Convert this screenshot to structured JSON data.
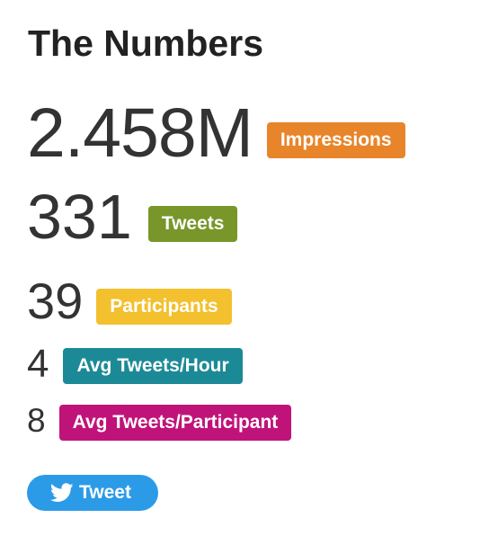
{
  "title": "The Numbers",
  "stats": [
    {
      "value": "2.458M",
      "label": "Impressions",
      "color": "#E8852A"
    },
    {
      "value": "331",
      "label": "Tweets",
      "color": "#78962A"
    },
    {
      "value": "39",
      "label": "Participants",
      "color": "#F3C02E"
    },
    {
      "value": "4",
      "label": "Avg Tweets/Hour",
      "color": "#1C8A96"
    },
    {
      "value": "8",
      "label": "Avg Tweets/Participant",
      "color": "#C0137A"
    }
  ],
  "tweet_button": {
    "label": "Tweet",
    "icon": "twitter-bird-icon",
    "color": "#2B9BE8"
  }
}
